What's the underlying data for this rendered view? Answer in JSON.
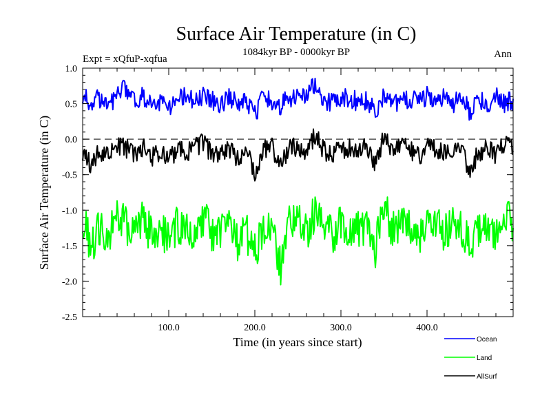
{
  "chart_data": {
    "type": "line",
    "title": "Surface Air Temperature (in C)",
    "subtitle": "1084kyr BP - 0000kyr BP",
    "left_label": "Expt = xQfuP-xqfua",
    "right_label": "Ann",
    "xlabel": "Time (in years since start)",
    "ylabel": "Surface Air Temperature (in C)",
    "xlim": [
      0,
      500
    ],
    "ylim": [
      -2.5,
      1.0
    ],
    "x_ticks": [
      100,
      200,
      300,
      400
    ],
    "x_tick_labels": [
      "100.0",
      "200.0",
      "300.0",
      "400.0"
    ],
    "y_ticks": [
      1.0,
      0.5,
      0.0,
      -0.5,
      -1.0,
      -1.5,
      -2.0,
      -2.5
    ],
    "y_tick_labels": [
      "1.0",
      "0.5",
      "0.0",
      "-0.5",
      "-1.0",
      "-1.5",
      "-2.0",
      "-2.5"
    ],
    "reference_line": {
      "y": 0.0,
      "style": "dashed"
    },
    "x": [
      0,
      10,
      20,
      30,
      40,
      50,
      60,
      70,
      80,
      90,
      100,
      110,
      120,
      130,
      140,
      150,
      160,
      170,
      180,
      190,
      200,
      210,
      220,
      230,
      240,
      250,
      260,
      270,
      280,
      290,
      300,
      310,
      320,
      330,
      340,
      350,
      360,
      370,
      380,
      390,
      400,
      410,
      420,
      430,
      440,
      450,
      460,
      470,
      480,
      490,
      500
    ],
    "series": [
      {
        "name": "Ocean",
        "color": "#0000ff",
        "values": [
          0.62,
          0.5,
          0.58,
          0.45,
          0.66,
          0.72,
          0.55,
          0.6,
          0.48,
          0.52,
          0.44,
          0.58,
          0.62,
          0.5,
          0.6,
          0.55,
          0.47,
          0.58,
          0.52,
          0.5,
          0.35,
          0.58,
          0.55,
          0.45,
          0.6,
          0.56,
          0.62,
          0.78,
          0.55,
          0.5,
          0.56,
          0.58,
          0.52,
          0.56,
          0.4,
          0.6,
          0.52,
          0.5,
          0.58,
          0.5,
          0.62,
          0.55,
          0.6,
          0.5,
          0.58,
          0.38,
          0.56,
          0.5,
          0.62,
          0.5,
          0.55
        ]
      },
      {
        "name": "Land",
        "color": "#00ff00",
        "values": [
          -1.1,
          -1.5,
          -1.25,
          -1.35,
          -1.05,
          -1.2,
          -1.3,
          -1.15,
          -1.35,
          -1.25,
          -1.4,
          -1.2,
          -1.3,
          -1.25,
          -1.1,
          -1.35,
          -1.3,
          -1.2,
          -1.45,
          -1.3,
          -1.6,
          -1.25,
          -1.2,
          -1.8,
          -1.2,
          -1.15,
          -1.3,
          -1.05,
          -1.3,
          -1.35,
          -1.2,
          -1.25,
          -1.3,
          -1.2,
          -1.55,
          -0.85,
          -1.3,
          -1.15,
          -1.25,
          -1.35,
          -1.2,
          -1.25,
          -1.3,
          -1.2,
          -1.25,
          -1.55,
          -1.3,
          -1.2,
          -1.35,
          -1.05,
          -1.25
        ]
      },
      {
        "name": "AllSurf",
        "color": "#000000",
        "values": [
          -0.22,
          -0.35,
          -0.15,
          -0.25,
          -0.08,
          -0.12,
          -0.2,
          -0.1,
          -0.25,
          -0.18,
          -0.3,
          -0.15,
          -0.2,
          -0.12,
          -0.05,
          -0.22,
          -0.2,
          -0.15,
          -0.28,
          -0.2,
          -0.45,
          -0.15,
          -0.12,
          -0.4,
          -0.12,
          -0.1,
          -0.18,
          0.05,
          -0.15,
          -0.22,
          -0.15,
          -0.12,
          -0.18,
          -0.1,
          -0.35,
          0.02,
          -0.2,
          -0.1,
          -0.15,
          -0.25,
          -0.12,
          -0.15,
          -0.2,
          -0.12,
          -0.18,
          -0.42,
          -0.2,
          -0.12,
          -0.22,
          -0.08,
          -0.15
        ]
      }
    ],
    "legend_position": "bottom-right"
  }
}
